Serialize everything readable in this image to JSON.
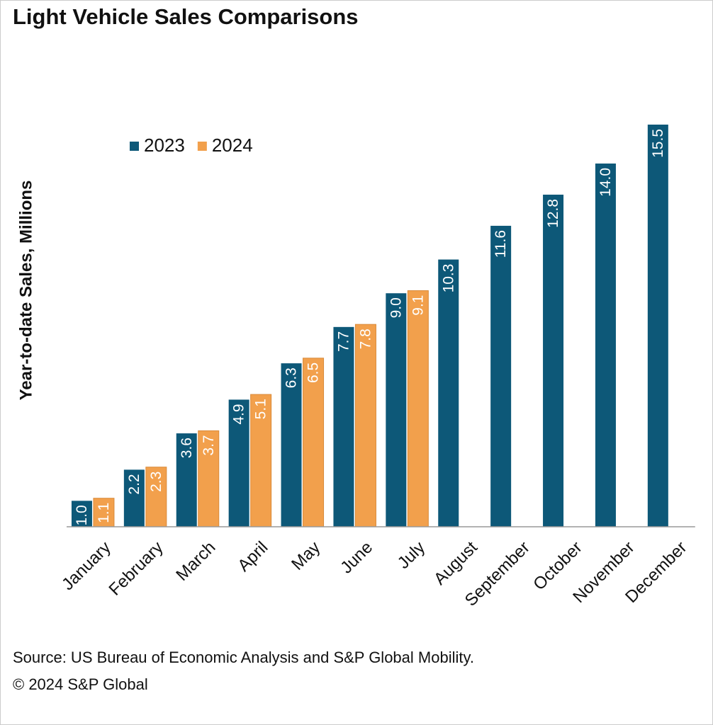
{
  "chart_data": {
    "type": "bar",
    "title": "Light Vehicle Sales Comparisons",
    "y_label": "Year-to-date Sales, Millions",
    "categories": [
      "January",
      "February",
      "March",
      "April",
      "May",
      "June",
      "July",
      "August",
      "September",
      "October",
      "November",
      "December"
    ],
    "series": [
      {
        "name": "2023",
        "color": "#0d5878",
        "values": [
          1.0,
          2.2,
          3.6,
          4.9,
          6.3,
          7.7,
          9.0,
          10.3,
          11.6,
          12.8,
          14.0,
          15.5
        ],
        "value_labels": [
          "1.0",
          "2.2",
          "3.6",
          "4.9",
          "6.3",
          "7.7",
          "9.0",
          "10.3",
          "11.6",
          "12.8",
          "14.0",
          "15.5"
        ]
      },
      {
        "name": "2024",
        "color": "#f2a04c",
        "values": [
          1.1,
          2.3,
          3.7,
          5.1,
          6.5,
          7.8,
          9.1,
          null,
          null,
          null,
          null,
          null
        ],
        "value_labels": [
          "1.1",
          "2.3",
          "3.7",
          "5.1",
          "6.5",
          "7.8",
          "9.1",
          null,
          null,
          null,
          null,
          null
        ]
      }
    ],
    "legend": "top-left",
    "source": "Source: US Bureau of Economic Analysis and S&P Global Mobility.",
    "copyright": "© 2024 S&P Global"
  }
}
